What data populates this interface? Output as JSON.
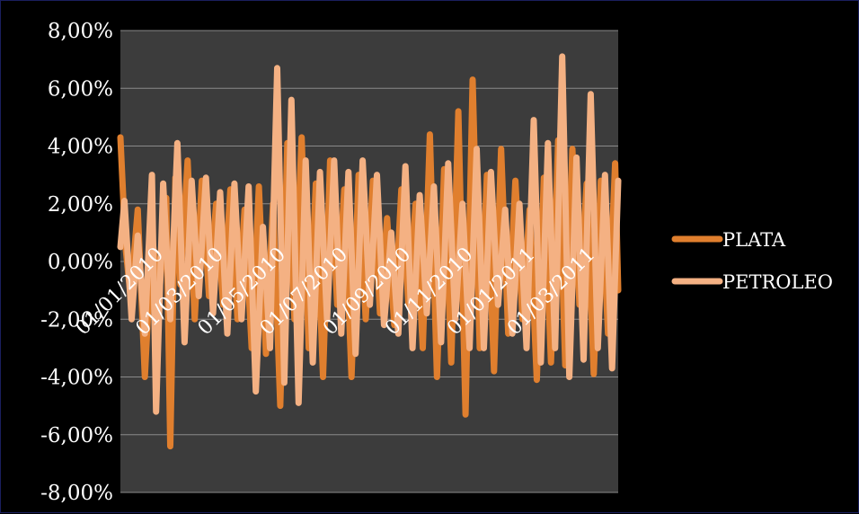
{
  "chart_data": {
    "type": "line",
    "title": "",
    "xlabel": "",
    "ylabel": "",
    "ylim": [
      -0.08,
      0.08
    ],
    "y_ticks": [
      "8,00%",
      "6,00%",
      "4,00%",
      "2,00%",
      "0,00%",
      "-2,00%",
      "-4,00%",
      "-6,00%",
      "-8,00%"
    ],
    "x_range": [
      "2010-01-01",
      "2011-05-05"
    ],
    "x_ticks": [
      {
        "date": "2010-01-01",
        "label": "01/01/2010"
      },
      {
        "date": "2010-03-01",
        "label": "01/03/2010"
      },
      {
        "date": "2010-05-01",
        "label": "01/05/2010"
      },
      {
        "date": "2010-07-01",
        "label": "01/07/2010"
      },
      {
        "date": "2010-09-01",
        "label": "01/09/2010"
      },
      {
        "date": "2010-11-01",
        "label": "01/11/2010"
      },
      {
        "date": "2011-01-01",
        "label": "01/01/2011"
      },
      {
        "date": "2011-03-01",
        "label": "01/03/2011"
      }
    ],
    "grid": true,
    "legend_position": "right",
    "plot_background": "#3c3c3c",
    "series": [
      {
        "name": "PLATA",
        "color": "#e07f2e",
        "points": [
          [
            "2010-01-01",
            0.043
          ],
          [
            "2010-01-06",
            0.005
          ],
          [
            "2010-01-11",
            -0.012
          ],
          [
            "2010-01-18",
            0.018
          ],
          [
            "2010-01-25",
            -0.04
          ],
          [
            "2010-02-01",
            0.009
          ],
          [
            "2010-02-08",
            -0.012
          ],
          [
            "2010-02-15",
            0.022
          ],
          [
            "2010-02-19",
            -0.064
          ],
          [
            "2010-02-24",
            0.029
          ],
          [
            "2010-03-01",
            -0.008
          ],
          [
            "2010-03-08",
            0.035
          ],
          [
            "2010-03-15",
            -0.02
          ],
          [
            "2010-03-22",
            0.028
          ],
          [
            "2010-03-29",
            -0.012
          ],
          [
            "2010-04-05",
            0.02
          ],
          [
            "2010-04-12",
            -0.015
          ],
          [
            "2010-04-19",
            0.025
          ],
          [
            "2010-04-26",
            -0.02
          ],
          [
            "2010-05-03",
            0.018
          ],
          [
            "2010-05-10",
            -0.03
          ],
          [
            "2010-05-17",
            0.026
          ],
          [
            "2010-05-24",
            -0.032
          ],
          [
            "2010-05-31",
            0.02
          ],
          [
            "2010-06-07",
            -0.05
          ],
          [
            "2010-06-14",
            0.041
          ],
          [
            "2010-06-21",
            -0.02
          ],
          [
            "2010-06-28",
            0.043
          ],
          [
            "2010-07-05",
            -0.03
          ],
          [
            "2010-07-12",
            0.027
          ],
          [
            "2010-07-19",
            -0.04
          ],
          [
            "2010-07-26",
            0.035
          ],
          [
            "2010-08-02",
            -0.015
          ],
          [
            "2010-08-09",
            0.025
          ],
          [
            "2010-08-16",
            -0.04
          ],
          [
            "2010-08-23",
            0.03
          ],
          [
            "2010-08-30",
            -0.02
          ],
          [
            "2010-09-06",
            0.028
          ],
          [
            "2010-09-13",
            -0.018
          ],
          [
            "2010-09-20",
            0.015
          ],
          [
            "2010-09-27",
            -0.022
          ],
          [
            "2010-10-04",
            0.025
          ],
          [
            "2010-10-11",
            -0.015
          ],
          [
            "2010-10-18",
            0.02
          ],
          [
            "2010-10-25",
            -0.03
          ],
          [
            "2010-11-01",
            0.044
          ],
          [
            "2010-11-08",
            -0.04
          ],
          [
            "2010-11-15",
            0.032
          ],
          [
            "2010-11-22",
            -0.035
          ],
          [
            "2010-11-29",
            0.052
          ],
          [
            "2010-12-06",
            -0.053
          ],
          [
            "2010-12-13",
            0.063
          ],
          [
            "2010-12-20",
            -0.03
          ],
          [
            "2010-12-27",
            0.03
          ],
          [
            "2011-01-03",
            -0.038
          ],
          [
            "2011-01-10",
            0.039
          ],
          [
            "2011-01-17",
            -0.025
          ],
          [
            "2011-01-24",
            0.028
          ],
          [
            "2011-01-31",
            -0.02
          ],
          [
            "2011-02-07",
            0.018
          ],
          [
            "2011-02-14",
            -0.041
          ],
          [
            "2011-02-21",
            0.029
          ],
          [
            "2011-02-28",
            -0.035
          ],
          [
            "2011-03-07",
            0.042
          ],
          [
            "2011-03-14",
            -0.036
          ],
          [
            "2011-03-21",
            0.039
          ],
          [
            "2011-03-28",
            -0.015
          ],
          [
            "2011-04-04",
            0.027
          ],
          [
            "2011-04-11",
            -0.039
          ],
          [
            "2011-04-18",
            0.028
          ],
          [
            "2011-04-25",
            -0.025
          ],
          [
            "2011-05-02",
            0.034
          ],
          [
            "2011-05-05",
            -0.01
          ]
        ]
      },
      {
        "name": "PETROLEO",
        "color": "#f4b183",
        "points": [
          [
            "2010-01-01",
            0.005
          ],
          [
            "2010-01-05",
            0.021
          ],
          [
            "2010-01-12",
            -0.02
          ],
          [
            "2010-01-18",
            0.009
          ],
          [
            "2010-01-25",
            -0.025
          ],
          [
            "2010-02-01",
            0.03
          ],
          [
            "2010-02-05",
            -0.052
          ],
          [
            "2010-02-12",
            0.027
          ],
          [
            "2010-02-19",
            -0.02
          ],
          [
            "2010-02-26",
            0.041
          ],
          [
            "2010-03-05",
            -0.028
          ],
          [
            "2010-03-12",
            0.028
          ],
          [
            "2010-03-19",
            -0.012
          ],
          [
            "2010-03-26",
            0.029
          ],
          [
            "2010-04-02",
            -0.018
          ],
          [
            "2010-04-09",
            0.024
          ],
          [
            "2010-04-16",
            -0.025
          ],
          [
            "2010-04-23",
            0.027
          ],
          [
            "2010-04-30",
            -0.02
          ],
          [
            "2010-05-07",
            0.026
          ],
          [
            "2010-05-14",
            -0.045
          ],
          [
            "2010-05-21",
            0.012
          ],
          [
            "2010-05-28",
            -0.03
          ],
          [
            "2010-06-04",
            0.067
          ],
          [
            "2010-06-11",
            -0.042
          ],
          [
            "2010-06-18",
            0.056
          ],
          [
            "2010-06-25",
            -0.049
          ],
          [
            "2010-07-02",
            0.035
          ],
          [
            "2010-07-09",
            -0.035
          ],
          [
            "2010-07-16",
            0.031
          ],
          [
            "2010-07-23",
            -0.02
          ],
          [
            "2010-07-30",
            0.035
          ],
          [
            "2010-08-06",
            -0.025
          ],
          [
            "2010-08-13",
            0.031
          ],
          [
            "2010-08-20",
            -0.032
          ],
          [
            "2010-08-27",
            0.035
          ],
          [
            "2010-09-03",
            -0.015
          ],
          [
            "2010-09-10",
            0.03
          ],
          [
            "2010-09-17",
            -0.022
          ],
          [
            "2010-09-24",
            0.01
          ],
          [
            "2010-10-01",
            -0.025
          ],
          [
            "2010-10-08",
            0.033
          ],
          [
            "2010-10-15",
            -0.03
          ],
          [
            "2010-10-22",
            0.023
          ],
          [
            "2010-10-29",
            -0.018
          ],
          [
            "2010-11-05",
            0.026
          ],
          [
            "2010-11-12",
            -0.028
          ],
          [
            "2010-11-19",
            0.034
          ],
          [
            "2010-11-26",
            -0.02
          ],
          [
            "2010-12-03",
            0.02
          ],
          [
            "2010-12-10",
            -0.03
          ],
          [
            "2010-12-17",
            0.039
          ],
          [
            "2010-12-24",
            -0.03
          ],
          [
            "2010-12-31",
            0.031
          ],
          [
            "2011-01-07",
            -0.015
          ],
          [
            "2011-01-14",
            0.018
          ],
          [
            "2011-01-21",
            -0.025
          ],
          [
            "2011-01-28",
            0.02
          ],
          [
            "2011-02-04",
            -0.03
          ],
          [
            "2011-02-11",
            0.049
          ],
          [
            "2011-02-18",
            -0.035
          ],
          [
            "2011-02-25",
            0.041
          ],
          [
            "2011-03-04",
            -0.03
          ],
          [
            "2011-03-11",
            0.071
          ],
          [
            "2011-03-18",
            -0.04
          ],
          [
            "2011-03-25",
            0.036
          ],
          [
            "2011-04-01",
            -0.034
          ],
          [
            "2011-04-08",
            0.058
          ],
          [
            "2011-04-15",
            -0.03
          ],
          [
            "2011-04-22",
            0.03
          ],
          [
            "2011-04-29",
            -0.037
          ],
          [
            "2011-05-05",
            0.028
          ]
        ]
      }
    ]
  }
}
